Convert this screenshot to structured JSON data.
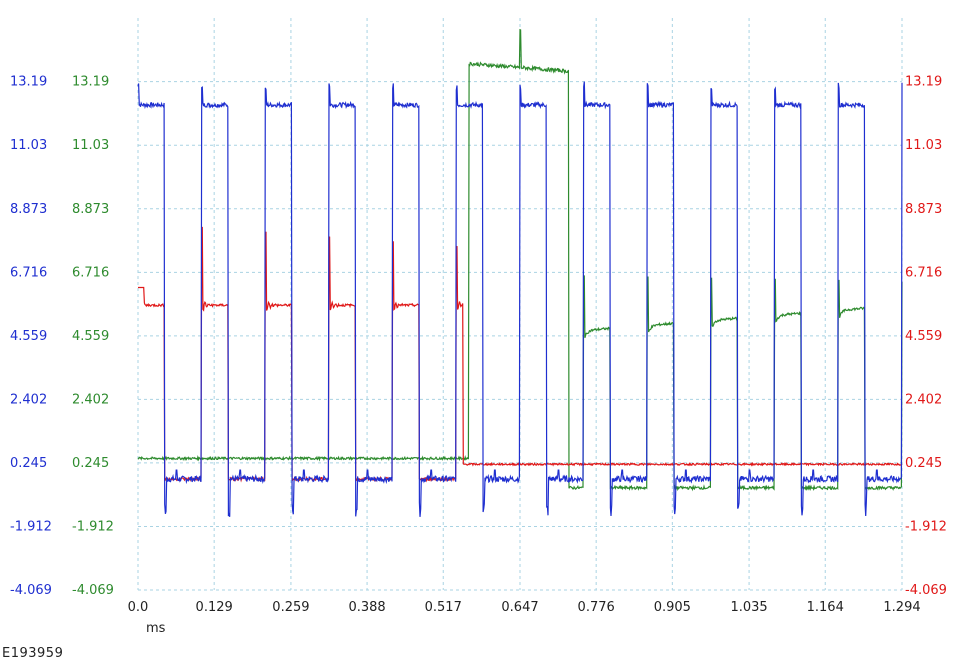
{
  "chart_data": {
    "type": "line",
    "title": "",
    "xlabel": "ms",
    "ylabel": "",
    "x_ticks": [
      "0.0",
      "0.129",
      "0.259",
      "0.388",
      "0.517",
      "0.647",
      "0.776",
      "0.905",
      "1.035",
      "1.164",
      "1.294"
    ],
    "xlim": [
      0,
      1.294
    ],
    "y_ticks": [
      "13.19",
      "11.03",
      "8.873",
      "6.716",
      "4.559",
      "2.402",
      "0.245",
      "-1.912",
      "-4.069"
    ],
    "ylim": [
      -4.069,
      15.35
    ],
    "grid": true,
    "legend": "none",
    "pulse_period_ms": 0.1078,
    "series": [
      {
        "color": "#1f2fd0",
        "axis": "left-outer",
        "high_level": 12.4,
        "low_level": -0.3,
        "spike_max": 13.2,
        "spike_min": -1.6
      },
      {
        "color": "#2e8b2e",
        "axis": "left-inner",
        "baseline_x_range": [
          0,
          0.56
        ],
        "baseline_level": 0.4,
        "plateau_x_range": [
          0.56,
          0.73
        ],
        "plateau_level": 13.8,
        "plateau_spike_max": 15.3,
        "settling_from": 0.73,
        "settling_start_level": 4.7,
        "settling_end_level": 5.6,
        "settling_spike_max": 6.6,
        "low_level": -0.6
      },
      {
        "color": "#e01818",
        "axis": "right",
        "start_level": 6.2,
        "settling_level": 5.6,
        "settling_x_range": [
          0,
          0.55
        ],
        "spike_max": 8.4,
        "low_level_after": 0.2
      }
    ]
  },
  "figure_id": "E193959",
  "colors": {
    "grid": "#a9d3e3",
    "blue": "#1f2fd0",
    "green": "#2e8b2e",
    "red": "#e01818"
  }
}
